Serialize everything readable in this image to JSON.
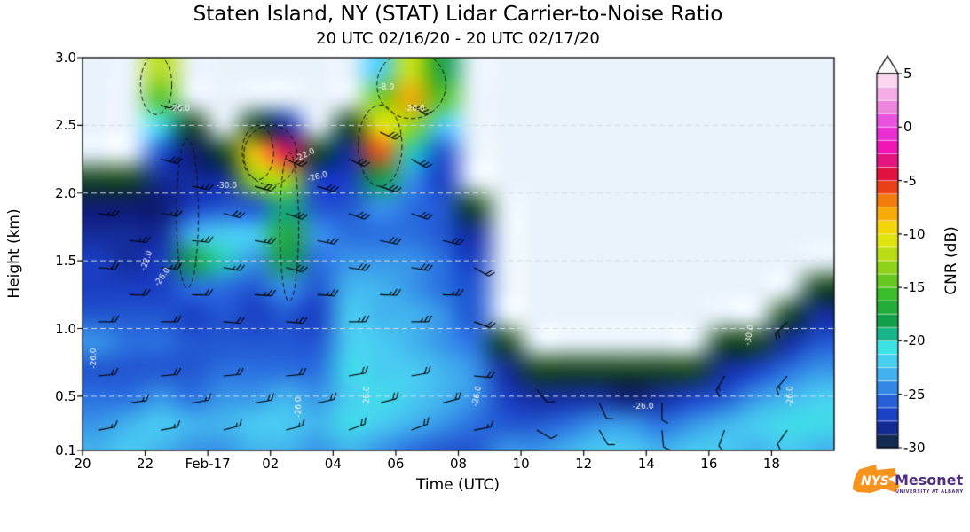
{
  "header": {
    "title": "Staten Island, NY (STAT) Lidar Carrier-to-Noise Ratio",
    "subtitle": "20 UTC 02/16/20 - 20 UTC 02/17/20"
  },
  "axes": {
    "xlabel": "Time (UTC)",
    "ylabel": "Height (km)",
    "x_range_hours": 24,
    "y_range_km": [
      0.1,
      3.0
    ],
    "gridlines": [
      0.5,
      1.0,
      1.5,
      2.0,
      2.5
    ],
    "x_ticks": [
      {
        "offset": 0,
        "label": "20"
      },
      {
        "offset": 2,
        "label": "22"
      },
      {
        "offset": 4,
        "label": "Feb-17"
      },
      {
        "offset": 6,
        "label": "02"
      },
      {
        "offset": 8,
        "label": "04"
      },
      {
        "offset": 10,
        "label": "06"
      },
      {
        "offset": 12,
        "label": "08"
      },
      {
        "offset": 14,
        "label": "10"
      },
      {
        "offset": 16,
        "label": "12"
      },
      {
        "offset": 18,
        "label": "14"
      },
      {
        "offset": 20,
        "label": "16"
      },
      {
        "offset": 22,
        "label": "18"
      }
    ],
    "y_ticks": [
      {
        "value": 3.0,
        "label": "3.0"
      },
      {
        "value": 2.5,
        "label": "2.5"
      },
      {
        "value": 2.0,
        "label": "2.0"
      },
      {
        "value": 1.5,
        "label": "1.5"
      },
      {
        "value": 1.0,
        "label": "1.0"
      },
      {
        "value": 0.5,
        "label": "0.5"
      },
      {
        "value": 0.1,
        "label": "0.1"
      }
    ]
  },
  "colorbar": {
    "label": "CNR (dB)",
    "min": -30,
    "max": 5,
    "band_step": 1.25,
    "extend_max": true,
    "ticks": [
      {
        "value": 5,
        "label": "5"
      },
      {
        "value": 0,
        "label": "0"
      },
      {
        "value": -5,
        "label": "-5"
      },
      {
        "value": -10,
        "label": "-10"
      },
      {
        "value": -15,
        "label": "-15"
      },
      {
        "value": -20,
        "label": "-20"
      },
      {
        "value": -25,
        "label": "-25"
      },
      {
        "value": -30,
        "label": "-30"
      }
    ]
  },
  "chart_data": {
    "type": "heatmap",
    "x_start_hour_utc": 20,
    "date_change_label": "Feb-17",
    "units": "dB",
    "background_no_data_color": "#e9f3fb",
    "heights_km": [
      0.1,
      0.3,
      0.5,
      0.7,
      0.9,
      1.1,
      1.3,
      1.5,
      1.7,
      1.9,
      2.1,
      2.3,
      2.5,
      2.7,
      2.9
    ],
    "time_offsets_hours": [
      0,
      1,
      2,
      3,
      4,
      5,
      6,
      7,
      8,
      9,
      10,
      11,
      12,
      13,
      14,
      15,
      16,
      17,
      18,
      19,
      20,
      21,
      22,
      23
    ],
    "cnr_grid_db": [
      [
        -23,
        -24,
        -25,
        -26,
        -24,
        -26,
        -27,
        -27,
        -28,
        -29,
        -30,
        null,
        null,
        null,
        null
      ],
      [
        -22,
        -23,
        -25,
        -26,
        -25,
        -26,
        -27,
        -28,
        -28,
        -29,
        -30,
        null,
        null,
        null,
        null
      ],
      [
        -23,
        -22,
        -24,
        -26,
        -25,
        -26,
        -27,
        -27,
        -28,
        -29,
        -28,
        -26,
        -21,
        -15,
        -12
      ],
      [
        -24,
        -23,
        -25,
        -26,
        -26,
        -27,
        -25,
        -18,
        -23,
        -27,
        -28,
        -29,
        -30,
        null,
        null
      ],
      [
        -24,
        -23,
        -24,
        -25,
        -26,
        -26,
        -25,
        -20,
        -22,
        -26,
        -28,
        -30,
        null,
        null,
        null
      ],
      [
        -23,
        -22,
        -24,
        -25,
        -26,
        -27,
        -26,
        -24,
        -22,
        -26,
        -13,
        -9,
        -30,
        null,
        null
      ],
      [
        -23,
        -22,
        -23,
        -25,
        -26,
        -26,
        -24,
        -18,
        -17,
        -19,
        -12,
        -4,
        -28,
        null,
        null
      ],
      [
        -24,
        -23,
        -24,
        -25,
        -26,
        -27,
        -26,
        -25,
        -24,
        -26,
        -27,
        -30,
        null,
        null,
        null
      ],
      [
        -23,
        -21,
        -22,
        -21,
        -22,
        -22,
        -23,
        -24,
        -25,
        -26,
        -27,
        -28,
        -30,
        null,
        null
      ],
      [
        -24,
        -22,
        -21,
        -22,
        -22,
        -23,
        -23,
        -24,
        -25,
        -24,
        -18,
        -6,
        -10,
        -14,
        -22
      ],
      [
        -25,
        -23,
        -22,
        -22,
        -23,
        -23,
        -24,
        -24,
        -25,
        -25,
        -24,
        -20,
        -13,
        -8,
        -11
      ],
      [
        -26,
        -24,
        -23,
        -23,
        -24,
        -24,
        -25,
        -25,
        -26,
        -26,
        -27,
        -26,
        -22,
        -15,
        -18
      ],
      [
        -26,
        -25,
        -24,
        -24,
        -25,
        -26,
        -26,
        -27,
        -28,
        -30,
        null,
        null,
        null,
        null,
        null
      ],
      [
        -24,
        -26,
        -27,
        -28,
        -30,
        null,
        null,
        null,
        null,
        null,
        null,
        null,
        null,
        null,
        null
      ],
      [
        -24,
        -26,
        -28,
        -30,
        null,
        null,
        null,
        null,
        null,
        null,
        null,
        null,
        null,
        null,
        null
      ],
      [
        -23,
        -25,
        -28,
        -30,
        null,
        null,
        null,
        null,
        null,
        null,
        null,
        null,
        null,
        null,
        null
      ],
      [
        -22,
        -24,
        -28,
        -30,
        null,
        null,
        null,
        null,
        null,
        null,
        null,
        null,
        null,
        null,
        null
      ],
      [
        -22,
        -24,
        -29,
        -30,
        null,
        null,
        null,
        null,
        null,
        null,
        null,
        null,
        null,
        null,
        null
      ],
      [
        -23,
        -25,
        -28,
        -30,
        null,
        null,
        null,
        null,
        null,
        null,
        null,
        null,
        null,
        null,
        null
      ],
      [
        -22,
        -24,
        -27,
        -30,
        null,
        null,
        null,
        null,
        null,
        null,
        null,
        null,
        null,
        null,
        null
      ],
      [
        -22,
        -23,
        -26,
        -28,
        -30,
        null,
        null,
        null,
        null,
        null,
        null,
        null,
        null,
        null,
        null
      ],
      [
        -23,
        -22,
        -24,
        -27,
        -30,
        null,
        null,
        null,
        null,
        null,
        null,
        null,
        null,
        null,
        null
      ],
      [
        -22,
        -21,
        -23,
        -25,
        -28,
        -30,
        null,
        null,
        null,
        null,
        null,
        null,
        null,
        null,
        null
      ],
      [
        -23,
        -21,
        -22,
        -24,
        -26,
        -28,
        -30,
        null,
        null,
        null,
        null,
        null,
        null,
        null,
        null
      ]
    ],
    "colormap_stops": [
      [
        -30,
        "#1d4a26"
      ],
      [
        -29,
        "#0d1a70"
      ],
      [
        -27,
        "#1a3ec2"
      ],
      [
        -25,
        "#2a6fe0"
      ],
      [
        -23.5,
        "#3fa8ec"
      ],
      [
        -22,
        "#49ccf2"
      ],
      [
        -20.5,
        "#3ce4e4"
      ],
      [
        -19.5,
        "#17b890"
      ],
      [
        -18,
        "#149e44"
      ],
      [
        -16,
        "#2eb82e"
      ],
      [
        -14,
        "#71cc1d"
      ],
      [
        -12,
        "#b4dc14"
      ],
      [
        -10,
        "#f2e80c"
      ],
      [
        -8,
        "#f7a809"
      ],
      [
        -6,
        "#f05a12"
      ],
      [
        -5,
        "#e51220"
      ],
      [
        -3.5,
        "#e01470"
      ],
      [
        -2,
        "#ee12b0"
      ],
      [
        0,
        "#e83ae0"
      ],
      [
        2,
        "#ee8ade"
      ],
      [
        4,
        "#f8c8ea"
      ],
      [
        5,
        "#fdeef8"
      ]
    ],
    "wind_barbs": [
      [
        0.5,
        0.25,
        80,
        15
      ],
      [
        0.5,
        0.65,
        85,
        18
      ],
      [
        0.5,
        1.05,
        90,
        20
      ],
      [
        0.5,
        1.45,
        95,
        22
      ],
      [
        0.5,
        1.85,
        100,
        25
      ],
      [
        1.5,
        0.45,
        82,
        16
      ],
      [
        1.5,
        1.25,
        92,
        20
      ],
      [
        1.5,
        1.65,
        97,
        24
      ],
      [
        2.5,
        0.25,
        80,
        15
      ],
      [
        2.5,
        0.65,
        85,
        18
      ],
      [
        2.5,
        1.05,
        90,
        22
      ],
      [
        2.5,
        1.45,
        95,
        25
      ],
      [
        2.5,
        1.85,
        100,
        25
      ],
      [
        2.5,
        2.25,
        105,
        28
      ],
      [
        2.5,
        2.65,
        110,
        30
      ],
      [
        3.5,
        0.45,
        80,
        16
      ],
      [
        3.5,
        1.25,
        92,
        22
      ],
      [
        3.5,
        1.65,
        96,
        24
      ],
      [
        3.5,
        2.05,
        102,
        26
      ],
      [
        4.5,
        0.25,
        75,
        15
      ],
      [
        4.5,
        0.65,
        85,
        20
      ],
      [
        4.5,
        1.05,
        95,
        22
      ],
      [
        4.5,
        1.45,
        100,
        25
      ],
      [
        4.5,
        1.85,
        105,
        28
      ],
      [
        5.5,
        0.45,
        80,
        18
      ],
      [
        5.5,
        1.25,
        94,
        24
      ],
      [
        5.5,
        1.65,
        100,
        26
      ],
      [
        5.5,
        2.05,
        106,
        28
      ],
      [
        6.5,
        0.25,
        75,
        15
      ],
      [
        6.5,
        0.65,
        85,
        20
      ],
      [
        6.5,
        1.05,
        95,
        25
      ],
      [
        6.5,
        1.45,
        105,
        28
      ],
      [
        6.5,
        1.85,
        110,
        30
      ],
      [
        6.5,
        2.25,
        115,
        30
      ],
      [
        7.5,
        0.45,
        78,
        18
      ],
      [
        7.5,
        1.25,
        94,
        25
      ],
      [
        7.5,
        1.65,
        102,
        27
      ],
      [
        7.5,
        2.05,
        108,
        29
      ],
      [
        8.5,
        0.25,
        70,
        18
      ],
      [
        8.5,
        0.65,
        80,
        22
      ],
      [
        8.5,
        1.05,
        90,
        25
      ],
      [
        8.5,
        1.45,
        100,
        28
      ],
      [
        8.5,
        1.85,
        110,
        30
      ],
      [
        8.5,
        2.25,
        115,
        30
      ],
      [
        9.5,
        0.45,
        75,
        20
      ],
      [
        9.5,
        1.25,
        92,
        26
      ],
      [
        9.5,
        1.65,
        102,
        28
      ],
      [
        9.5,
        2.05,
        110,
        30
      ],
      [
        9.5,
        2.45,
        115,
        32
      ],
      [
        10.5,
        0.25,
        70,
        18
      ],
      [
        10.5,
        0.65,
        80,
        22
      ],
      [
        10.5,
        1.05,
        90,
        25
      ],
      [
        10.5,
        1.45,
        100,
        28
      ],
      [
        10.5,
        1.85,
        110,
        30
      ],
      [
        10.5,
        2.25,
        120,
        32
      ],
      [
        10.5,
        2.65,
        125,
        35
      ],
      [
        11.5,
        0.45,
        75,
        20
      ],
      [
        11.5,
        1.25,
        92,
        26
      ],
      [
        11.5,
        1.65,
        104,
        28
      ],
      [
        12.5,
        0.25,
        80,
        15
      ],
      [
        12.5,
        0.65,
        95,
        18
      ],
      [
        12.5,
        1.05,
        110,
        20
      ],
      [
        12.5,
        1.45,
        120,
        22
      ],
      [
        14.5,
        0.25,
        120,
        10
      ],
      [
        14.5,
        0.55,
        140,
        12
      ],
      [
        16.5,
        0.25,
        150,
        10
      ],
      [
        16.5,
        0.45,
        155,
        10
      ],
      [
        18.5,
        0.25,
        175,
        10
      ],
      [
        18.5,
        0.45,
        180,
        12
      ],
      [
        20.5,
        0.25,
        200,
        12
      ],
      [
        20.5,
        0.65,
        210,
        15
      ],
      [
        22.5,
        0.25,
        215,
        12
      ],
      [
        22.5,
        0.65,
        220,
        15
      ],
      [
        22.5,
        1.05,
        225,
        18
      ]
    ],
    "contour_labels": [
      {
        "t": 0.35,
        "h": 0.78,
        "text": "-26.0",
        "rot": -90
      },
      {
        "t": 2.05,
        "h": 1.5,
        "text": "-22.0",
        "rot": -70
      },
      {
        "t": 2.55,
        "h": 1.38,
        "text": "-26.0",
        "rot": -55
      },
      {
        "t": 3.1,
        "h": 2.62,
        "text": "-26.0",
        "rot": 0
      },
      {
        "t": 4.6,
        "h": 2.05,
        "text": "-30.0",
        "rot": 0
      },
      {
        "t": 7.1,
        "h": 2.28,
        "text": "-22.0",
        "rot": -25
      },
      {
        "t": 7.5,
        "h": 2.12,
        "text": "-26.0",
        "rot": -15
      },
      {
        "t": 9.7,
        "h": 2.78,
        "text": "-8.0",
        "rot": 0
      },
      {
        "t": 10.6,
        "h": 2.62,
        "text": "-26.0",
        "rot": 0
      },
      {
        "t": 6.9,
        "h": 0.42,
        "text": "-26.0",
        "rot": -90
      },
      {
        "t": 9.1,
        "h": 0.5,
        "text": "-26.0",
        "rot": -90
      },
      {
        "t": 12.6,
        "h": 0.5,
        "text": "-26.0",
        "rot": -80
      },
      {
        "t": 17.9,
        "h": 0.42,
        "text": "-26.0",
        "rot": 0
      },
      {
        "t": 21.3,
        "h": 0.95,
        "text": "-30.0",
        "rot": -80
      },
      {
        "t": 22.6,
        "h": 0.5,
        "text": "-26.0",
        "rot": -90
      }
    ],
    "feature_outlines": [
      [
        2.35,
        2.8,
        0.5,
        0.22
      ],
      [
        3.35,
        1.85,
        0.35,
        0.55
      ],
      [
        5.6,
        2.3,
        0.5,
        0.2
      ],
      [
        6.0,
        2.28,
        0.85,
        0.22
      ],
      [
        6.6,
        1.75,
        0.3,
        0.55
      ],
      [
        9.5,
        2.35,
        0.7,
        0.3
      ],
      [
        10.5,
        2.8,
        1.1,
        0.25
      ]
    ]
  },
  "logo": {
    "nys": "NYS",
    "mesonet": "Mesonet",
    "tagline": "UNIVERSITY AT ALBANY",
    "orange": "#f7941d",
    "purple": "#4f2d7f"
  }
}
